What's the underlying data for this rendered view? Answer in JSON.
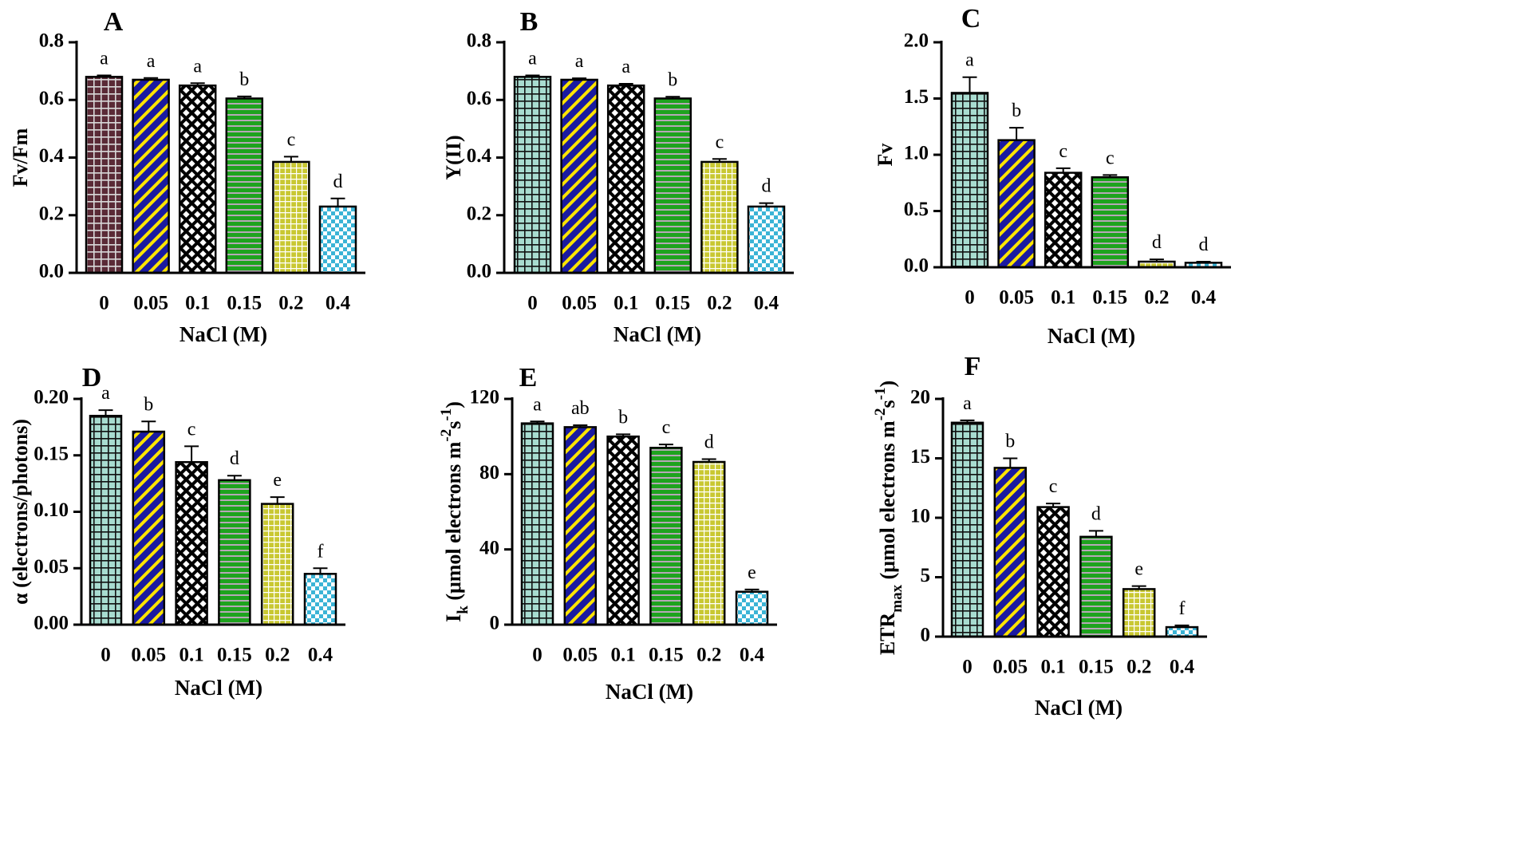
{
  "figure": {
    "patterns": {
      "p0": {
        "kind": "grid",
        "bg": "#a8dcd0",
        "fg": "#111111"
      },
      "p0dark": {
        "kind": "grid",
        "bg": "#5a2a36",
        "fg": "#d8d8d8"
      },
      "p1": {
        "kind": "diag",
        "bg": "#1a1aa0",
        "fg": "#ffe400"
      },
      "p2": {
        "kind": "dots",
        "bg": "#ffffff",
        "fg": "#000000"
      },
      "p3": {
        "kind": "hstripe",
        "bg": "#1ea31e",
        "fg": "#b6a8b6"
      },
      "p4": {
        "kind": "smallgrid",
        "bg": "#c9c832",
        "fg": "#ffffff"
      },
      "p5": {
        "kind": "checker",
        "bg": "#ffffff",
        "fg": "#3bb4d6"
      }
    }
  },
  "chart_data": [
    {
      "panel": "A",
      "type": "bar",
      "categories": [
        "0",
        "0.05",
        "0.1",
        "0.15",
        "0.2",
        "0.4"
      ],
      "values": [
        0.68,
        0.67,
        0.65,
        0.605,
        0.385,
        0.23
      ],
      "errors": [
        0.005,
        0.006,
        0.008,
        0.007,
        0.018,
        0.028
      ],
      "labels": [
        "a",
        "a",
        "a",
        "b",
        "c",
        "d"
      ],
      "patterns": [
        "p0dark",
        "p1",
        "p2",
        "p3",
        "p4",
        "p5"
      ],
      "ylabel": "Fv/Fm",
      "xlabel": "NaCl (M)",
      "ylim": [
        0,
        0.8
      ],
      "yticks": [
        "0.0",
        "0.2",
        "0.4",
        "0.6",
        "0.8"
      ]
    },
    {
      "panel": "B",
      "type": "bar",
      "categories": [
        "0",
        "0.05",
        "0.1",
        "0.15",
        "0.2",
        "0.4"
      ],
      "values": [
        0.68,
        0.67,
        0.65,
        0.605,
        0.385,
        0.23
      ],
      "errors": [
        0.005,
        0.005,
        0.006,
        0.006,
        0.01,
        0.012
      ],
      "labels": [
        "a",
        "a",
        "a",
        "b",
        "c",
        "d"
      ],
      "patterns": [
        "p0",
        "p1",
        "p2",
        "p3",
        "p4",
        "p5"
      ],
      "ylabel": "Y(II)",
      "xlabel": "NaCl (M)",
      "ylim": [
        0,
        0.8
      ],
      "yticks": [
        "0.0",
        "0.2",
        "0.4",
        "0.6",
        "0.8"
      ]
    },
    {
      "panel": "C",
      "type": "bar",
      "categories": [
        "0",
        "0.05",
        "0.1",
        "0.15",
        "0.2",
        "0.4"
      ],
      "values": [
        1.55,
        1.13,
        0.84,
        0.8,
        0.05,
        0.04
      ],
      "errors": [
        0.14,
        0.11,
        0.04,
        0.02,
        0.02,
        0.01
      ],
      "labels": [
        "a",
        "b",
        "c",
        "c",
        "d",
        "d"
      ],
      "patterns": [
        "p0",
        "p1",
        "p2",
        "p3",
        "p4",
        "p5"
      ],
      "ylabel": "Fv",
      "xlabel": "NaCl (M)",
      "ylim": [
        0,
        2.0
      ],
      "yticks": [
        "0.0",
        "0.5",
        "1.0",
        "1.5",
        "2.0"
      ]
    },
    {
      "panel": "D",
      "type": "bar",
      "categories": [
        "0",
        "0.05",
        "0.1",
        "0.15",
        "0.2",
        "0.4"
      ],
      "values": [
        0.185,
        0.171,
        0.144,
        0.128,
        0.107,
        0.045
      ],
      "errors": [
        0.005,
        0.009,
        0.014,
        0.004,
        0.006,
        0.005
      ],
      "labels": [
        "a",
        "b",
        "c",
        "d",
        "e",
        "f"
      ],
      "patterns": [
        "p0",
        "p1",
        "p2",
        "p3",
        "p4",
        "p5"
      ],
      "ylabel": "α (electrons/photons)",
      "xlabel": "NaCl (M)",
      "ylim": [
        0,
        0.2
      ],
      "yticks": [
        "0.00",
        "0.05",
        "0.10",
        "0.15",
        "0.20"
      ]
    },
    {
      "panel": "E",
      "type": "bar",
      "categories": [
        "0",
        "0.05",
        "0.1",
        "0.15",
        "0.2",
        "0.4"
      ],
      "values": [
        107,
        105,
        100,
        94,
        86.5,
        17.5
      ],
      "errors": [
        1.0,
        1.0,
        1.2,
        1.8,
        1.5,
        1.2
      ],
      "labels": [
        "a",
        "ab",
        "b",
        "c",
        "d",
        "e"
      ],
      "patterns": [
        "p0",
        "p1",
        "p2",
        "p3",
        "p4",
        "p5"
      ],
      "ylabel": "I",
      "ylabel_sub": "k",
      "ylabel_rest": " (μmol electrons m",
      "ylabel_sup1": "-2",
      "ylabel_mid": "s",
      "ylabel_sup2": "-1",
      "ylabel_end": ")",
      "xlabel": "NaCl (M)",
      "ylim": [
        0,
        120
      ],
      "yticks": [
        "0",
        "40",
        "80",
        "120"
      ]
    },
    {
      "panel": "F",
      "type": "bar",
      "categories": [
        "0",
        "0.05",
        "0.1",
        "0.15",
        "0.2",
        "0.4"
      ],
      "values": [
        18.0,
        14.2,
        10.9,
        8.4,
        4.0,
        0.8
      ],
      "errors": [
        0.2,
        0.8,
        0.3,
        0.5,
        0.25,
        0.15
      ],
      "labels": [
        "a",
        "b",
        "c",
        "d",
        "e",
        "f"
      ],
      "patterns": [
        "p0",
        "p1",
        "p2",
        "p3",
        "p4",
        "p5"
      ],
      "ylabel": "ETR",
      "ylabel_sub": "max",
      "ylabel_rest": " (μmol electrons m",
      "ylabel_sup1": "-2",
      "ylabel_mid": "s",
      "ylabel_sup2": "-1",
      "ylabel_end": ")",
      "xlabel": "NaCl (M)",
      "ylim": [
        0,
        20
      ],
      "yticks": [
        "0",
        "5",
        "10",
        "15",
        "20"
      ]
    }
  ]
}
